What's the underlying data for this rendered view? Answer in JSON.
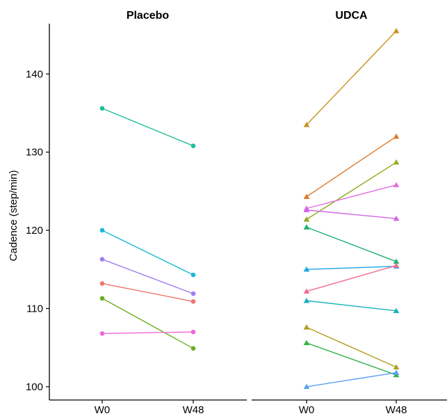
{
  "chart_data": {
    "type": "line",
    "ylabel": "Cadence (step/min)",
    "xlabel": "",
    "ylim": [
      98.3,
      147.5
    ],
    "yticks": [
      100,
      110,
      120,
      130,
      140
    ],
    "categories": [
      "W0",
      "W48"
    ],
    "legend": "none",
    "panels": [
      {
        "title": "Placebo",
        "marker": "circle",
        "series": [
          {
            "color": "#1fbc99",
            "values": [
              135.6,
              130.8
            ]
          },
          {
            "color": "#19b7d6",
            "values": [
              120.0,
              114.3
            ]
          },
          {
            "color": "#a07cf0",
            "values": [
              116.3,
              111.9
            ]
          },
          {
            "color": "#f0736b",
            "values": [
              113.2,
              110.9
            ]
          },
          {
            "color": "#6cae1f",
            "values": [
              111.3,
              104.9
            ]
          },
          {
            "color": "#f166d8",
            "values": [
              106.8,
              107.0
            ]
          }
        ]
      },
      {
        "title": "UDCA",
        "marker": "triangle",
        "series": [
          {
            "color": "#c8921e",
            "values": [
              133.5,
              145.5
            ]
          },
          {
            "color": "#e0792a",
            "values": [
              124.3,
              132.0
            ]
          },
          {
            "color": "#8fac1c",
            "values": [
              121.4,
              128.7
            ]
          },
          {
            "color": "#e46de0",
            "values": [
              122.8,
              125.8
            ]
          },
          {
            "color": "#d267e8",
            "values": [
              122.6,
              121.5
            ]
          },
          {
            "color": "#1caf6f",
            "values": [
              120.4,
              116.0
            ]
          },
          {
            "color": "#1aa6e3",
            "values": [
              115.0,
              115.4
            ]
          },
          {
            "color": "#f26d8e",
            "values": [
              112.2,
              115.5
            ]
          },
          {
            "color": "#17b1bb",
            "values": [
              111.0,
              109.7
            ]
          },
          {
            "color": "#b19d1d",
            "values": [
              107.6,
              102.5
            ]
          },
          {
            "color": "#30b34c",
            "values": [
              105.6,
              101.5
            ]
          },
          {
            "color": "#5c9ef0",
            "values": [
              100.0,
              101.8
            ]
          }
        ]
      }
    ]
  }
}
